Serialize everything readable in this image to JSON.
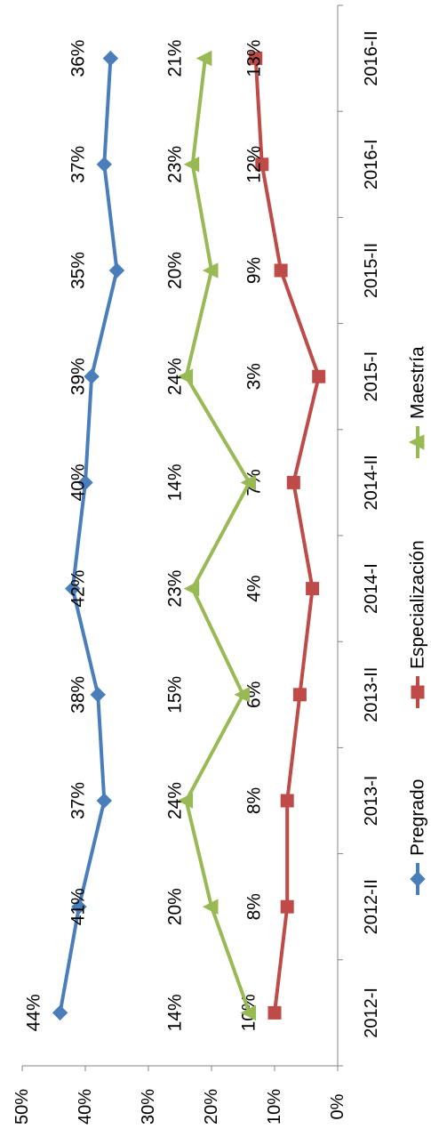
{
  "chart_data": {
    "type": "line",
    "orientation": "rotated-90-clockwise",
    "title": "",
    "xlabel": "",
    "ylabel": "",
    "categories": [
      "2012-I",
      "2012-II",
      "2013-I",
      "2013-II",
      "2014-I",
      "2014-II",
      "2015-I",
      "2015-II",
      "2016-I",
      "2016-II"
    ],
    "ylim": [
      0,
      50
    ],
    "yticks": [
      0,
      10,
      20,
      30,
      40,
      50
    ],
    "ytick_labels": [
      "0%",
      "10%",
      "20%",
      "30%",
      "40%",
      "50%"
    ],
    "grid": false,
    "legend_position": "right",
    "series": [
      {
        "name": "Pregrado",
        "color": "#4a7ebb",
        "marker": "diamond",
        "values": [
          44,
          41,
          37,
          38,
          42,
          40,
          39,
          35,
          37,
          36
        ],
        "labels": [
          "44%",
          "41%",
          "37%",
          "38%",
          "42%",
          "40%",
          "39%",
          "35%",
          "37%",
          "36%"
        ]
      },
      {
        "name": "Especialización",
        "color": "#be4b48",
        "marker": "square",
        "values": [
          10,
          8,
          8,
          6,
          4,
          7,
          3,
          9,
          12,
          13
        ],
        "labels": [
          "10%",
          "8%",
          "8%",
          "6%",
          "4%",
          "7%",
          "3%",
          "9%",
          "12%",
          "13%"
        ]
      },
      {
        "name": "Maestría",
        "color": "#98b954",
        "marker": "triangle",
        "values": [
          14,
          20,
          24,
          15,
          23,
          14,
          24,
          20,
          23,
          21
        ],
        "labels": [
          "14%",
          "20%",
          "24%",
          "15%",
          "23%",
          "14%",
          "24%",
          "20%",
          "23%",
          "21%"
        ]
      }
    ]
  }
}
